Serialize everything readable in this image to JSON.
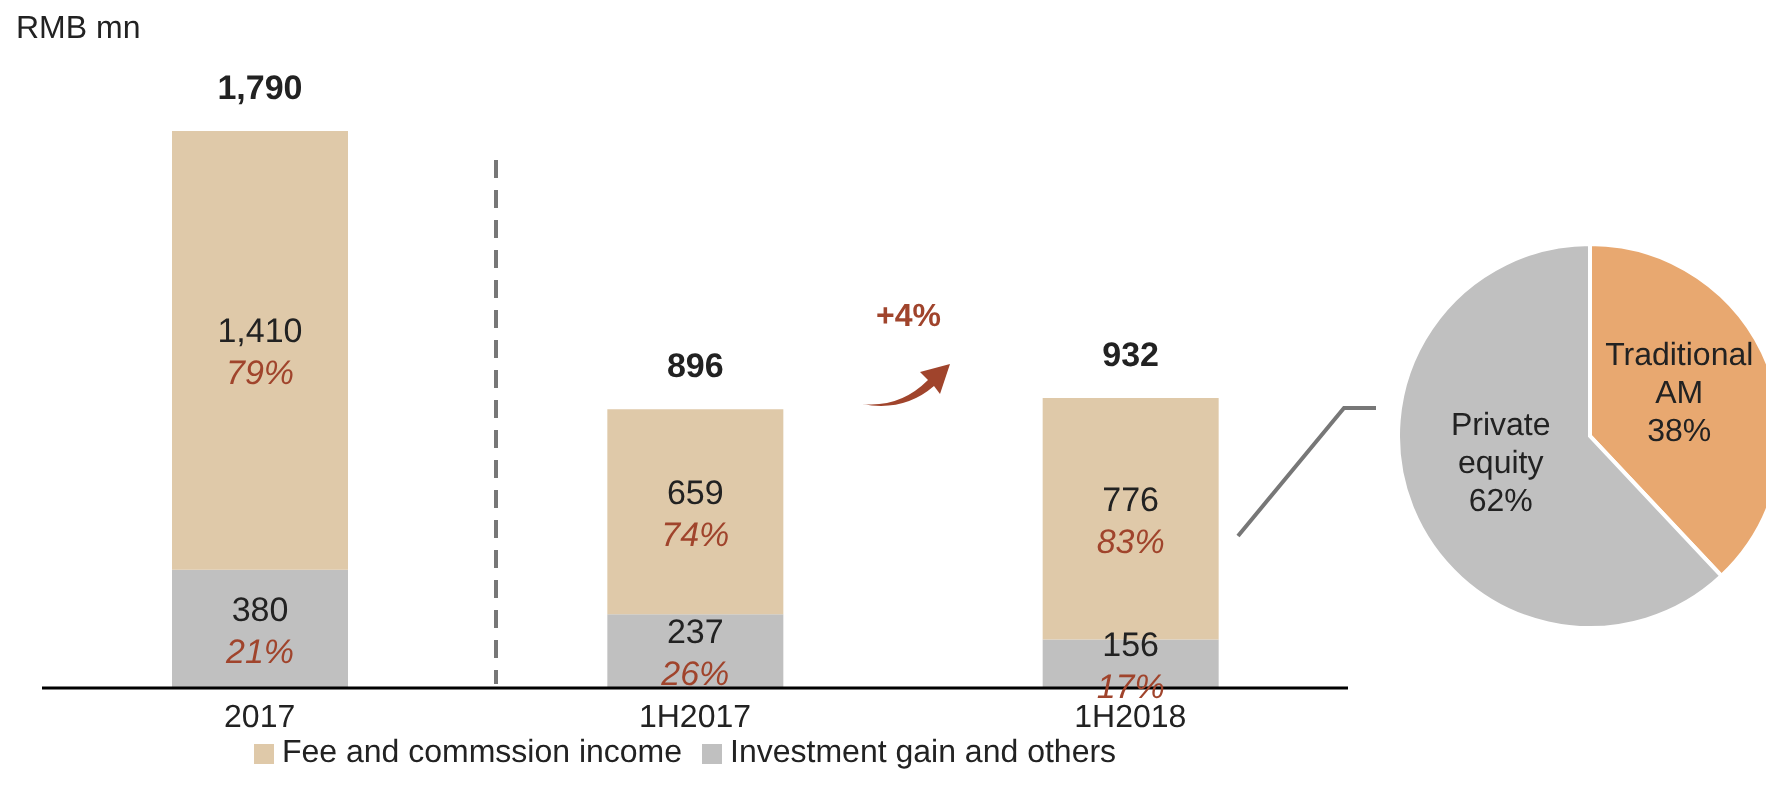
{
  "chart_data": [
    {
      "type": "bar",
      "stacked": true,
      "ylabel": "RMB mn",
      "categories": [
        "2017",
        "1H2017",
        "1H2018"
      ],
      "tick_labels": "x",
      "legend": "bottom",
      "series": [
        {
          "name": "Investment gain and others",
          "color": "#c0c0c0",
          "values": [
            380,
            237,
            156
          ],
          "value_labels": [
            "380",
            "237",
            "156"
          ]
        },
        {
          "name": "Fee and commssion income",
          "color": "#dfc9a9",
          "values": [
            1410,
            659,
            776
          ],
          "value_labels": [
            "1,410",
            "659",
            "776"
          ]
        }
      ],
      "totals": [
        "1,790",
        "896",
        "932"
      ],
      "annotations": [
        "21%",
        "79%",
        "26%",
        "74%",
        "17%",
        "83%",
        "+4%"
      ]
    },
    {
      "type": "pie",
      "categories": [
        "Traditional AM",
        "Private equity"
      ],
      "values": [
        38,
        62
      ],
      "value_labels": [
        "38%",
        "62%"
      ],
      "colors": [
        "#e8a870",
        "#c0c0c0"
      ],
      "legend": false
    }
  ]
}
